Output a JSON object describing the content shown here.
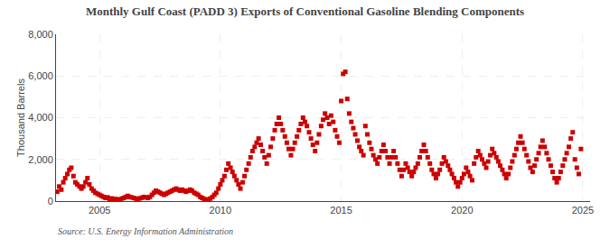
{
  "chart_data": {
    "type": "scatter",
    "title": "Monthly Gulf Coast (PADD 3) Exports of Conventional Gasoline Blending Components",
    "y_label": "Thousand Barrels",
    "annotations": [
      "Source: U.S. Energy Information Administration"
    ],
    "color": "#cc0000",
    "marker": "square",
    "grid": true,
    "xlim": [
      2003.2,
      2025.3
    ],
    "xticks": [
      2005,
      2010,
      2015,
      2020,
      2025
    ],
    "ylim": [
      0,
      8000
    ],
    "yticks": [
      0,
      {
        "value": 2000,
        "label": "2,000"
      },
      {
        "value": 4000,
        "label": "4,000"
      },
      {
        "value": 6000,
        "label": "6,000"
      },
      {
        "value": 8000,
        "label": "8,000"
      }
    ],
    "x": [
      2003.25,
      2003.33,
      2003.42,
      2003.5,
      2003.58,
      2003.67,
      2003.75,
      2003.83,
      2003.92,
      2004.0,
      2004.08,
      2004.17,
      2004.25,
      2004.33,
      2004.42,
      2004.5,
      2004.58,
      2004.67,
      2004.75,
      2004.83,
      2004.92,
      2005.0,
      2005.08,
      2005.17,
      2005.25,
      2005.33,
      2005.42,
      2005.5,
      2005.58,
      2005.67,
      2005.75,
      2005.83,
      2005.92,
      2006.0,
      2006.08,
      2006.17,
      2006.25,
      2006.33,
      2006.42,
      2006.5,
      2006.58,
      2006.67,
      2006.75,
      2006.83,
      2006.92,
      2007.0,
      2007.08,
      2007.17,
      2007.25,
      2007.33,
      2007.42,
      2007.5,
      2007.58,
      2007.67,
      2007.75,
      2007.83,
      2007.92,
      2008.0,
      2008.08,
      2008.17,
      2008.25,
      2008.33,
      2008.42,
      2008.5,
      2008.58,
      2008.67,
      2008.75,
      2008.83,
      2008.92,
      2009.0,
      2009.08,
      2009.17,
      2009.25,
      2009.33,
      2009.42,
      2009.5,
      2009.58,
      2009.67,
      2009.75,
      2009.83,
      2009.92,
      2010.0,
      2010.08,
      2010.17,
      2010.25,
      2010.33,
      2010.42,
      2010.5,
      2010.58,
      2010.67,
      2010.75,
      2010.83,
      2010.92,
      2011.0,
      2011.08,
      2011.17,
      2011.25,
      2011.33,
      2011.42,
      2011.5,
      2011.58,
      2011.67,
      2011.75,
      2011.83,
      2011.92,
      2012.0,
      2012.08,
      2012.17,
      2012.25,
      2012.33,
      2012.42,
      2012.5,
      2012.58,
      2012.67,
      2012.75,
      2012.83,
      2012.92,
      2013.0,
      2013.08,
      2013.17,
      2013.25,
      2013.33,
      2013.42,
      2013.5,
      2013.58,
      2013.67,
      2013.75,
      2013.83,
      2013.92,
      2014.0,
      2014.08,
      2014.17,
      2014.25,
      2014.33,
      2014.42,
      2014.5,
      2014.58,
      2014.67,
      2014.75,
      2014.83,
      2014.92,
      2015.0,
      2015.08,
      2015.17,
      2015.25,
      2015.33,
      2015.42,
      2015.5,
      2015.58,
      2015.67,
      2015.75,
      2015.83,
      2015.92,
      2016.0,
      2016.08,
      2016.17,
      2016.25,
      2016.33,
      2016.42,
      2016.5,
      2016.58,
      2016.67,
      2016.75,
      2016.83,
      2016.92,
      2017.0,
      2017.08,
      2017.17,
      2017.25,
      2017.33,
      2017.42,
      2017.5,
      2017.58,
      2017.67,
      2017.75,
      2017.83,
      2017.92,
      2018.0,
      2018.08,
      2018.17,
      2018.25,
      2018.33,
      2018.42,
      2018.5,
      2018.58,
      2018.67,
      2018.75,
      2018.83,
      2018.92,
      2019.0,
      2019.08,
      2019.17,
      2019.25,
      2019.33,
      2019.42,
      2019.5,
      2019.58,
      2019.67,
      2019.75,
      2019.83,
      2019.92,
      2020.0,
      2020.08,
      2020.17,
      2020.25,
      2020.33,
      2020.42,
      2020.5,
      2020.58,
      2020.67,
      2020.75,
      2020.83,
      2020.92,
      2021.0,
      2021.08,
      2021.17,
      2021.25,
      2021.33,
      2021.42,
      2021.5,
      2021.58,
      2021.67,
      2021.75,
      2021.83,
      2021.92,
      2022.0,
      2022.08,
      2022.17,
      2022.25,
      2022.33,
      2022.42,
      2022.5,
      2022.58,
      2022.67,
      2022.75,
      2022.83,
      2022.92,
      2023.0,
      2023.08,
      2023.17,
      2023.25,
      2023.33,
      2023.42,
      2023.5,
      2023.58,
      2023.67,
      2023.75,
      2023.83,
      2023.92,
      2024.0,
      2024.08,
      2024.17,
      2024.25,
      2024.33,
      2024.42,
      2024.5,
      2024.58,
      2024.67,
      2024.75,
      2024.83,
      2024.92
    ],
    "values": [
      450,
      700,
      550,
      900,
      1100,
      1300,
      1500,
      1600,
      1200,
      900,
      800,
      700,
      600,
      700,
      900,
      1100,
      800,
      600,
      500,
      400,
      350,
      300,
      250,
      200,
      150,
      180,
      100,
      130,
      80,
      100,
      60,
      80,
      120,
      150,
      200,
      250,
      200,
      180,
      150,
      120,
      100,
      130,
      160,
      200,
      180,
      150,
      200,
      300,
      400,
      500,
      450,
      400,
      350,
      300,
      350,
      400,
      450,
      500,
      550,
      600,
      550,
      500,
      550,
      500,
      450,
      500,
      550,
      500,
      400,
      350,
      300,
      200,
      150,
      100,
      50,
      80,
      120,
      200,
      300,
      400,
      600,
      800,
      1000,
      1200,
      1500,
      1800,
      1600,
      1400,
      1200,
      1000,
      800,
      600,
      900,
      1200,
      1500,
      1800,
      2100,
      2400,
      2600,
      2800,
      3000,
      2700,
      2400,
      2100,
      1800,
      2200,
      2600,
      3000,
      3400,
      3700,
      4000,
      3700,
      3400,
      3100,
      2800,
      2500,
      2200,
      2500,
      2800,
      3100,
      3400,
      3700,
      4000,
      3800,
      3600,
      3300,
      3000,
      2700,
      2400,
      2800,
      3200,
      3600,
      3900,
      4200,
      4000,
      3700,
      4100,
      3800,
      3400,
      3100,
      2800,
      4800,
      6100,
      6200,
      4900,
      4200,
      3800,
      3500,
      3200,
      2900,
      2600,
      2400,
      2200,
      3600,
      3200,
      2800,
      2500,
      2200,
      2000,
      1800,
      2100,
      2400,
      2700,
      2400,
      2100,
      1800,
      2100,
      2400,
      2100,
      1800,
      1500,
      1200,
      1500,
      1800,
      1600,
      1400,
      1200,
      1400,
      1600,
      1800,
      2100,
      2400,
      2700,
      2400,
      2100,
      1800,
      1500,
      1300,
      1100,
      1300,
      1500,
      1800,
      2100,
      1900,
      1700,
      1500,
      1300,
      1100,
      900,
      700,
      900,
      1100,
      1300,
      1600,
      1400,
      1200,
      1000,
      1800,
      2100,
      2400,
      2200,
      2000,
      1800,
      1600,
      1900,
      2200,
      2500,
      2300,
      2100,
      1900,
      1700,
      1500,
      1300,
      1100,
      1300,
      1600,
      1900,
      2200,
      2500,
      2800,
      3100,
      2800,
      2500,
      2200,
      1900,
      1600,
      1400,
      1700,
      2000,
      2300,
      2600,
      2900,
      2600,
      2300,
      2000,
      1700,
      1400,
      1100,
      900,
      1100,
      1400,
      1700,
      2000,
      2300,
      2600,
      3000,
      3300,
      2000,
      1600,
      1300,
      2500
    ]
  }
}
